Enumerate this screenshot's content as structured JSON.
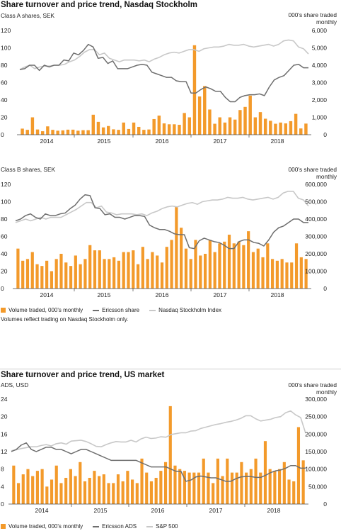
{
  "colors": {
    "bar": "#F39A2B",
    "share": "#6e6e6e",
    "index": "#c8c8c8",
    "axis": "#444444"
  },
  "section1": {
    "title": "Share turnover and price trend, Nasdaq Stockholm",
    "legend": {
      "volume": "Volume traded, 000's monthly",
      "share": "Ericsson share",
      "index": "Nasdaq Stockholm Index"
    },
    "note": "Volumes reflect trading on Nasdaq Stockholm only."
  },
  "section2": {
    "title": "Share turnover and price trend, US market",
    "legend": {
      "volume": "Volume traded, 000's monthly",
      "share": "Ericsson ADS",
      "index": "S&P 500"
    }
  },
  "chart_data": [
    {
      "type": "bar",
      "subtitle": "Class A shares, SEK",
      "right_label_1": "000's share traded",
      "right_label_2": "monthly",
      "x_labels": [
        "2014",
        "2015",
        "2016",
        "2017",
        "2018"
      ],
      "left_ticks": [
        "0",
        "20",
        "40",
        "60",
        "80",
        "100",
        "120"
      ],
      "right_ticks": [
        "0",
        "1,000",
        "2,000",
        "3,000",
        "4,000",
        "5,000",
        "6,000"
      ],
      "left_ylim": [
        0,
        120
      ],
      "right_ylim": [
        0,
        6000
      ],
      "series": [
        {
          "name": "Volume traded, 000's monthly",
          "axis": "right",
          "values": [
            350,
            280,
            1000,
            300,
            200,
            480,
            280,
            230,
            250,
            290,
            290,
            230,
            260,
            260,
            1150,
            740,
            420,
            500,
            310,
            280,
            700,
            330,
            700,
            450,
            280,
            300,
            900,
            1100,
            650,
            600,
            600,
            570,
            1250,
            1000,
            5150,
            2200,
            2800,
            1450,
            630,
            1000,
            700,
            1000,
            870,
            1420,
            1600,
            2250,
            1000,
            1300,
            920,
            800,
            630,
            700,
            650,
            780,
            1200,
            360,
            640
          ]
        },
        {
          "name": "Ericsson share",
          "axis": "left",
          "values": [
            75,
            76,
            80,
            80,
            74,
            80,
            78,
            80,
            80,
            86,
            85,
            94,
            92,
            97,
            104,
            101,
            88,
            89,
            82,
            85,
            76,
            76,
            76,
            78,
            80,
            81,
            80,
            72,
            70,
            68,
            66,
            66,
            62,
            61,
            61,
            48,
            48,
            52,
            55,
            53,
            50,
            50,
            43,
            38,
            38,
            43,
            45,
            46,
            46,
            47,
            45,
            55,
            63,
            66,
            68,
            74,
            80,
            81,
            77,
            77
          ]
        },
        {
          "name": "Nasdaq Stockholm Index",
          "axis": "left",
          "values": [
            75,
            78,
            80,
            76,
            78,
            79,
            79,
            80,
            80,
            81,
            84,
            86,
            90,
            95,
            98,
            98,
            92,
            94,
            88,
            86,
            84,
            86,
            86,
            86,
            85,
            86,
            84,
            87,
            89,
            92,
            94,
            95,
            94,
            96,
            98,
            98,
            96,
            99,
            100,
            101,
            101,
            102,
            104,
            103,
            103,
            104,
            102,
            101,
            102,
            103,
            104,
            102,
            104,
            108,
            109,
            108,
            101,
            99,
            93
          ]
        }
      ]
    },
    {
      "type": "bar",
      "subtitle": "Class B shares, SEK",
      "right_label_1": "000's share traded",
      "right_label_2": "monthly",
      "x_labels": [
        "2014",
        "2015",
        "2016",
        "2017",
        "2018"
      ],
      "left_ticks": [
        "0",
        "20",
        "40",
        "60",
        "80",
        "100",
        "120"
      ],
      "right_ticks": [
        "0",
        "100,000",
        "200,000",
        "300,000",
        "400,000",
        "500,000",
        "600,000"
      ],
      "left_ylim": [
        0,
        120
      ],
      "right_ylim": [
        0,
        600000
      ],
      "series": [
        {
          "name": "Volume traded, 000's monthly",
          "axis": "right",
          "values": [
            230000,
            160000,
            170000,
            210000,
            140000,
            130000,
            160000,
            100000,
            170000,
            200000,
            150000,
            130000,
            190000,
            140000,
            170000,
            250000,
            220000,
            220000,
            170000,
            170000,
            180000,
            160000,
            210000,
            210000,
            220000,
            140000,
            240000,
            170000,
            210000,
            190000,
            150000,
            240000,
            280000,
            470000,
            350000,
            230000,
            170000,
            280000,
            190000,
            200000,
            280000,
            210000,
            260000,
            270000,
            310000,
            260000,
            270000,
            250000,
            330000,
            210000,
            230000,
            180000,
            260000,
            170000,
            160000,
            170000,
            150000,
            150000,
            260000,
            180000,
            170000
          ]
        },
        {
          "name": "Ericsson share",
          "axis": "left",
          "values": [
            78,
            80,
            84,
            86,
            82,
            80,
            86,
            84,
            84,
            86,
            87,
            92,
            96,
            103,
            108,
            107,
            93,
            92,
            85,
            86,
            82,
            82,
            80,
            82,
            84,
            84,
            83,
            73,
            70,
            68,
            68,
            66,
            63,
            62,
            62,
            47,
            46,
            55,
            58,
            56,
            54,
            53,
            50,
            46,
            46,
            54,
            56,
            56,
            53,
            52,
            49,
            56,
            65,
            70,
            72,
            76,
            80,
            80,
            76,
            76
          ]
        },
        {
          "name": "Nasdaq Stockholm Index",
          "axis": "left",
          "values": [
            76,
            78,
            80,
            78,
            80,
            82,
            80,
            82,
            82,
            82,
            85,
            88,
            91,
            95,
            99,
            99,
            93,
            95,
            88,
            87,
            85,
            86,
            86,
            86,
            85,
            86,
            84,
            87,
            89,
            92,
            94,
            95,
            94,
            96,
            98,
            99,
            97,
            100,
            101,
            102,
            102,
            103,
            105,
            104,
            104,
            105,
            103,
            102,
            103,
            104,
            105,
            103,
            105,
            110,
            112,
            112,
            104,
            102,
            95
          ]
        }
      ]
    },
    {
      "type": "bar",
      "subtitle": "ADS, USD",
      "right_label_1": "000's share traded",
      "right_label_2": "monthly",
      "x_labels": [
        "2014",
        "2015",
        "2016",
        "2017",
        "2018"
      ],
      "left_ticks": [
        "0",
        "4",
        "8",
        "12",
        "16",
        "20",
        "24"
      ],
      "right_ticks": [
        "0",
        "50,000",
        "100,000",
        "150,000",
        "200,000",
        "250,000",
        "300,000"
      ],
      "left_ylim": [
        0,
        24
      ],
      "right_ylim": [
        0,
        300000
      ],
      "series": [
        {
          "name": "Volume traded, 000's monthly",
          "axis": "right",
          "values": [
            110000,
            60000,
            85000,
            100000,
            80000,
            95000,
            100000,
            50000,
            70000,
            110000,
            60000,
            75000,
            100000,
            80000,
            120000,
            65000,
            75000,
            95000,
            80000,
            85000,
            60000,
            60000,
            85000,
            65000,
            95000,
            70000,
            60000,
            130000,
            90000,
            65000,
            75000,
            95000,
            120000,
            280000,
            110000,
            100000,
            95000,
            90000,
            90000,
            90000,
            130000,
            90000,
            60000,
            130000,
            80000,
            130000,
            90000,
            90000,
            120000,
            90000,
            100000,
            130000,
            90000,
            180000,
            100000,
            95000,
            100000,
            120000,
            70000,
            65000,
            220000,
            125000
          ]
        },
        {
          "name": "Ericsson ADS",
          "axis": "left",
          "values": [
            12,
            12.5,
            13.5,
            14,
            12.5,
            12,
            12.5,
            13,
            13,
            12.5,
            12.5,
            12,
            11.5,
            12,
            12.5,
            12.5,
            12,
            11.5,
            11,
            10.5,
            10,
            10,
            10,
            10,
            10,
            10,
            9.5,
            9,
            8.5,
            8.5,
            8.5,
            8.5,
            8,
            7.5,
            7.5,
            5.2,
            5.5,
            6.2,
            6.4,
            6.2,
            6,
            6,
            5.6,
            5.2,
            5.2,
            5.8,
            6.2,
            6.3,
            6.3,
            6.1,
            6.1,
            6.6,
            7.2,
            7.6,
            7.8,
            8.2,
            8.8,
            8.8,
            8.2,
            8.2
          ]
        },
        {
          "name": "S&P 500",
          "axis": "left",
          "values": [
            12.2,
            12.4,
            12.7,
            12.9,
            13.1,
            13.1,
            13.4,
            13.6,
            13.3,
            13.8,
            14.0,
            13.7,
            14.4,
            14.5,
            14.6,
            14.3,
            13.8,
            13.2,
            13.1,
            13.6,
            14.0,
            14.3,
            14.2,
            14.2,
            14.6,
            14.2,
            14.9,
            15.3,
            15.0,
            15.1,
            15.4,
            15.3,
            15.9,
            16.1,
            16.3,
            16.3,
            16.7,
            16.8,
            17.3,
            17.6,
            17.9,
            18.2,
            18.4,
            18.7,
            18.9,
            19.2,
            19.6,
            20.2,
            20.2,
            19.5,
            19.0,
            19.2,
            19.4,
            19.8,
            20.0,
            20.9,
            21.3,
            20.4,
            19.8,
            16.2
          ]
        }
      ]
    }
  ]
}
